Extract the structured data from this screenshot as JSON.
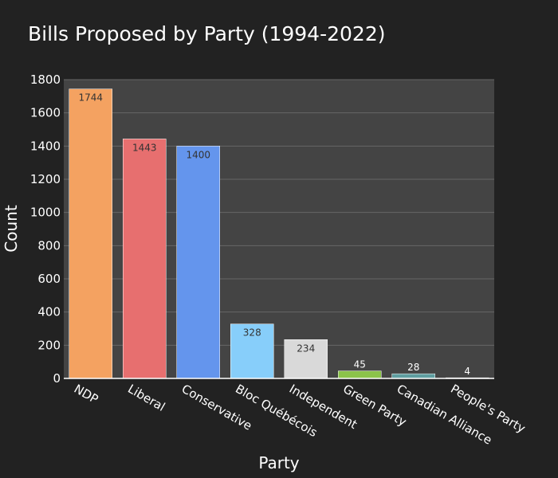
{
  "chart_data": {
    "type": "bar",
    "title": "Bills Proposed by Party (1994-2022)",
    "xlabel": "Party",
    "ylabel": "Count",
    "categories": [
      "NDP",
      "Liberal",
      "Conservative",
      "Bloc Québécois",
      "Independent",
      "Green Party",
      "Canadian Alliance",
      "People's Party"
    ],
    "values": [
      1744,
      1443,
      1400,
      328,
      234,
      45,
      28,
      4
    ],
    "colors": [
      "#F4A261",
      "#E76F6F",
      "#6495ED",
      "#87CEFA",
      "#D9D9D9",
      "#8BC34A",
      "#5F9EA0",
      "#9E9E9E"
    ],
    "ylim": [
      0,
      1800
    ],
    "yticks": [
      0,
      200,
      400,
      600,
      800,
      1000,
      1200,
      1400,
      1600,
      1800
    ],
    "grid": true,
    "legend": "none",
    "plot_background": "#444444",
    "paper_background": "#222222",
    "grid_color": "#666666"
  }
}
